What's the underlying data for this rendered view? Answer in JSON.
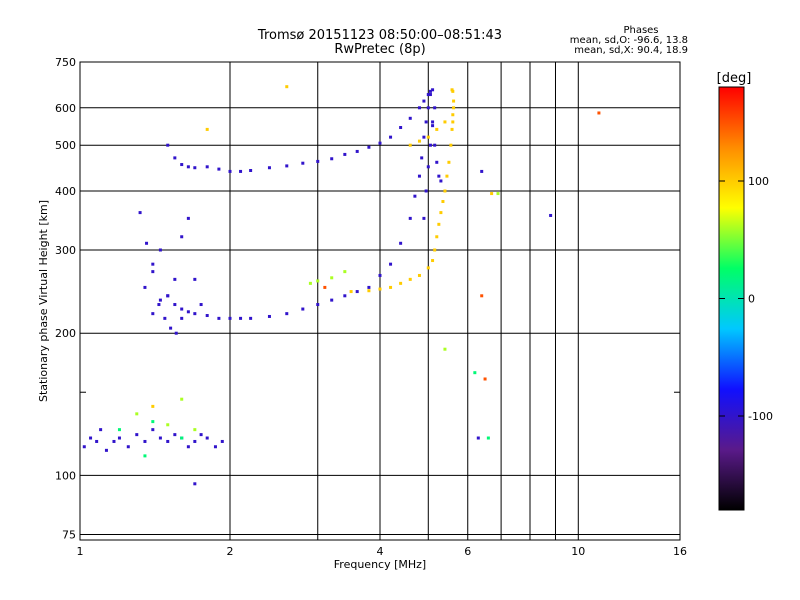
{
  "chart_data": {
    "type": "scatter",
    "title": "Tromsø 20151123 08:50:00–08:51:43",
    "subtitle": "RwPretec (8p)",
    "stats": {
      "heading": "Phases",
      "line1": "mean, sd,O: -96.6, 13.8",
      "line2": "mean, sd,X:  90.4, 18.9"
    },
    "xlabel": "Frequency [MHz]",
    "ylabel": "Stationary phase Virtual Height [km]",
    "x_scale": "log",
    "y_scale": "log",
    "xlim": [
      1,
      16
    ],
    "ylim": [
      73,
      750
    ],
    "x_ticks": [
      1,
      2,
      4,
      6,
      10,
      16
    ],
    "x_tick_labels": [
      "1",
      "2",
      "4",
      "6",
      "10",
      "16"
    ],
    "x_minor_ticks": [
      3,
      5,
      7,
      8,
      9
    ],
    "y_ticks": [
      75,
      100,
      200,
      300,
      400,
      500,
      600,
      750
    ],
    "y_tick_labels": [
      "75",
      "100",
      "200",
      "300",
      "400",
      "500",
      "600",
      "750"
    ],
    "y_minor_ticks": [
      150
    ],
    "grid": true,
    "colorbar": {
      "label": "[deg]",
      "range": [
        -180,
        180
      ],
      "tick_values": [
        100,
        0,
        -100
      ],
      "tick_labels": [
        "100",
        "0",
        "-100"
      ],
      "stops": [
        "#000000",
        "#5a1a8a",
        "#1010ff",
        "#00c8ff",
        "#00ff66",
        "#ffff00",
        "#ff8c00",
        "#ff0000"
      ]
    },
    "series": [
      {
        "phase": -100,
        "x": [
          1.02,
          1.05,
          1.08,
          1.1,
          1.13,
          1.17,
          1.2,
          1.25,
          1.3,
          1.35,
          1.4,
          1.45,
          1.5,
          1.55,
          1.6,
          1.65,
          1.7,
          1.75,
          1.8,
          1.87,
          1.93,
          1.35,
          1.4,
          1.45,
          1.5,
          1.55,
          1.6,
          1.65,
          1.7,
          1.75,
          1.4,
          1.45,
          1.5,
          1.55,
          1.6,
          1.65,
          1.7,
          1.8,
          1.9,
          2.0,
          2.1,
          2.2,
          2.4,
          2.6,
          2.8,
          3.0,
          3.2,
          3.4,
          3.6,
          3.8,
          4.0,
          4.2,
          4.4,
          4.6,
          4.7,
          4.8,
          4.85,
          4.9,
          4.95,
          5.0,
          5.05,
          5.1,
          5.15,
          5.2,
          5.25,
          5.3,
          1.5,
          1.55,
          1.6,
          1.65,
          1.7,
          1.8,
          1.9,
          2.0,
          2.1,
          2.2,
          2.4,
          2.6,
          2.8,
          3.0,
          3.2,
          3.4,
          3.6,
          3.8,
          4.0,
          4.2,
          4.4,
          4.6,
          4.8,
          4.9,
          5.0,
          5.05,
          5.1,
          4.9,
          4.95,
          5.0,
          5.05,
          5.1,
          5.15,
          1.32,
          1.36,
          1.4,
          1.44,
          1.48,
          1.52,
          1.56,
          1.6,
          6.3,
          6.4,
          8.8,
          1.7
        ],
        "y": [
          115,
          120,
          118,
          125,
          113,
          118,
          120,
          115,
          122,
          118,
          125,
          120,
          118,
          122,
          120,
          115,
          118,
          122,
          120,
          115,
          118,
          250,
          280,
          300,
          240,
          260,
          320,
          350,
          260,
          230,
          220,
          235,
          240,
          230,
          225,
          222,
          220,
          218,
          215,
          215,
          215,
          215,
          217,
          220,
          225,
          230,
          235,
          240,
          245,
          250,
          265,
          280,
          310,
          350,
          390,
          430,
          470,
          520,
          560,
          600,
          640,
          560,
          500,
          460,
          430,
          420,
          500,
          470,
          455,
          450,
          448,
          450,
          445,
          440,
          440,
          442,
          448,
          452,
          458,
          462,
          468,
          478,
          485,
          495,
          505,
          520,
          545,
          570,
          600,
          620,
          640,
          650,
          655,
          350,
          400,
          450,
          500,
          550,
          600,
          360,
          310,
          270,
          230,
          215,
          205,
          200,
          215,
          120,
          440,
          355,
          96
        ]
      },
      {
        "phase": 100,
        "x": [
          3.5,
          3.8,
          4.0,
          4.2,
          4.4,
          4.6,
          4.8,
          5.0,
          5.1,
          5.15,
          5.2,
          5.25,
          5.3,
          5.35,
          5.4,
          5.45,
          5.5,
          5.55,
          5.58,
          5.6,
          5.6,
          5.62,
          5.62,
          5.6,
          5.58,
          4.6,
          4.8,
          5.0,
          5.2,
          5.4,
          2.6,
          1.8,
          6.7,
          1.4
        ],
        "y": [
          245,
          246,
          248,
          250,
          255,
          260,
          265,
          275,
          285,
          300,
          320,
          340,
          360,
          380,
          400,
          430,
          460,
          500,
          540,
          560,
          580,
          600,
          620,
          650,
          655,
          500,
          510,
          520,
          540,
          560,
          665,
          540,
          395,
          140
        ]
      },
      {
        "phase": 60,
        "x": [
          3.0,
          3.2,
          3.4,
          2.9,
          1.3,
          1.5,
          1.7,
          1.6,
          5.4,
          6.9
        ],
        "y": [
          258,
          262,
          270,
          255,
          135,
          128,
          125,
          145,
          185,
          395
        ]
      },
      {
        "phase": 20,
        "x": [
          1.2,
          1.4,
          1.6,
          1.35,
          6.2,
          6.6
        ],
        "y": [
          125,
          130,
          120,
          110,
          165,
          120
        ]
      },
      {
        "phase": 150,
        "x": [
          11.0,
          6.4,
          6.5,
          3.1
        ],
        "y": [
          585,
          240,
          160,
          250
        ]
      }
    ]
  }
}
